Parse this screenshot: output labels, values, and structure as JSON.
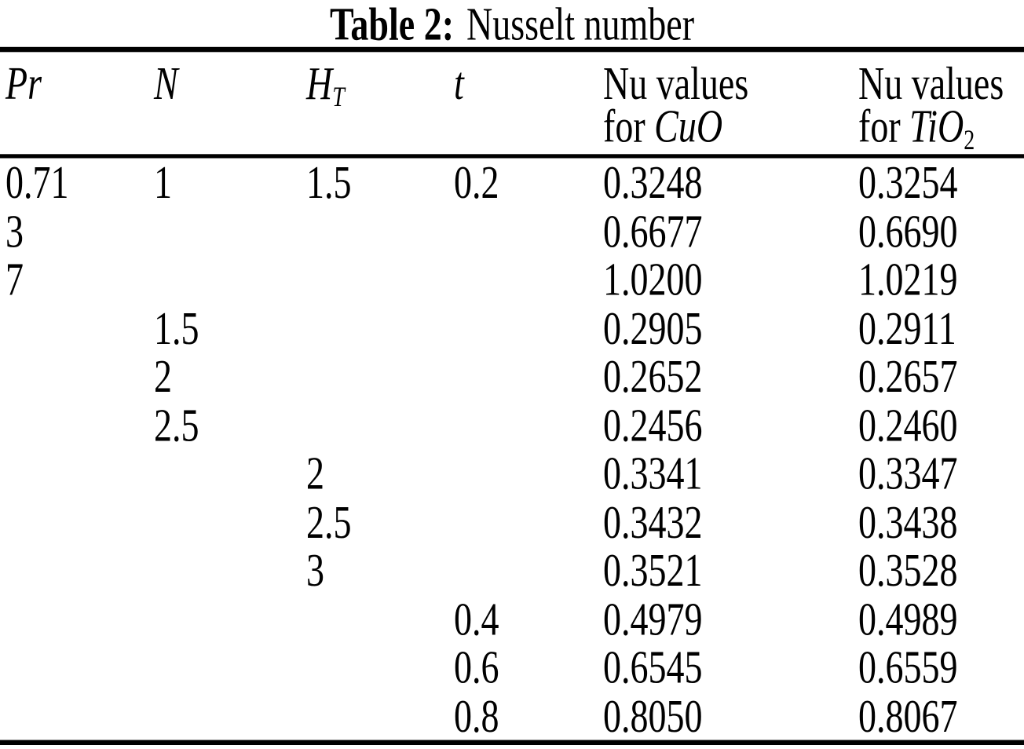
{
  "caption": {
    "label": "Table 2:",
    "title": "Nusselt number"
  },
  "table": {
    "column_keys": [
      "pr",
      "n",
      "ht",
      "t",
      "nu-cuo",
      "nu-tio2"
    ],
    "headers": [
      {
        "label": "Pr"
      },
      {
        "label": "N"
      },
      {
        "label": "H",
        "subscript": "T"
      },
      {
        "label": "t"
      },
      {
        "line1": "Nu values",
        "line2_prefix": "for",
        "formula": "CuO"
      },
      {
        "line1": "Nu values",
        "line2_prefix": "for",
        "formula": "TiO",
        "formula_subscript": "2"
      }
    ],
    "rows": [
      [
        "0.71",
        "1",
        "1.5",
        "0.2",
        "0.3248",
        "0.3254"
      ],
      [
        "3",
        "",
        "",
        "",
        "0.6677",
        "0.6690"
      ],
      [
        "7",
        "",
        "",
        "",
        "1.0200",
        "1.0219"
      ],
      [
        "",
        "1.5",
        "",
        "",
        "0.2905",
        "0.2911"
      ],
      [
        "",
        "2",
        "",
        "",
        "0.2652",
        "0.2657"
      ],
      [
        "",
        "2.5",
        "",
        "",
        "0.2456",
        "0.2460"
      ],
      [
        "",
        "",
        "2",
        "",
        "0.3341",
        "0.3347"
      ],
      [
        "",
        "",
        "2.5",
        "",
        "0.3432",
        "0.3438"
      ],
      [
        "",
        "",
        "3",
        "",
        "0.3521",
        "0.3528"
      ],
      [
        "",
        "",
        "",
        "0.4",
        "0.4979",
        "0.4989"
      ],
      [
        "",
        "",
        "",
        "0.6",
        "0.6545",
        "0.6559"
      ],
      [
        "",
        "",
        "",
        "0.8",
        "0.8050",
        "0.8067"
      ]
    ]
  },
  "chart_data": {
    "type": "table",
    "title": "Table 2: Nusselt number",
    "columns": [
      "Pr",
      "N",
      "H_T",
      "t",
      "Nu values for CuO",
      "Nu values for TiO_2"
    ],
    "rows": [
      [
        "0.71",
        "1",
        "1.5",
        "0.2",
        "0.3248",
        "0.3254"
      ],
      [
        "3",
        "",
        "",
        "",
        "0.6677",
        "0.6690"
      ],
      [
        "7",
        "",
        "",
        "",
        "1.0200",
        "1.0219"
      ],
      [
        "",
        "1.5",
        "",
        "",
        "0.2905",
        "0.2911"
      ],
      [
        "",
        "2",
        "",
        "",
        "0.2652",
        "0.2657"
      ],
      [
        "",
        "2.5",
        "",
        "",
        "0.2456",
        "0.2460"
      ],
      [
        "",
        "",
        "2",
        "",
        "0.3341",
        "0.3347"
      ],
      [
        "",
        "",
        "2.5",
        "",
        "0.3432",
        "0.3438"
      ],
      [
        "",
        "",
        "3",
        "",
        "0.3521",
        "0.3528"
      ],
      [
        "",
        "",
        "",
        "0.4",
        "0.4979",
        "0.4989"
      ],
      [
        "",
        "",
        "",
        "0.6",
        "0.6545",
        "0.6559"
      ],
      [
        "",
        "",
        "",
        "0.8",
        "0.8050",
        "0.8067"
      ]
    ]
  },
  "colors": {
    "text": "#000000",
    "background": "#ffffff",
    "rule": "#000000"
  }
}
